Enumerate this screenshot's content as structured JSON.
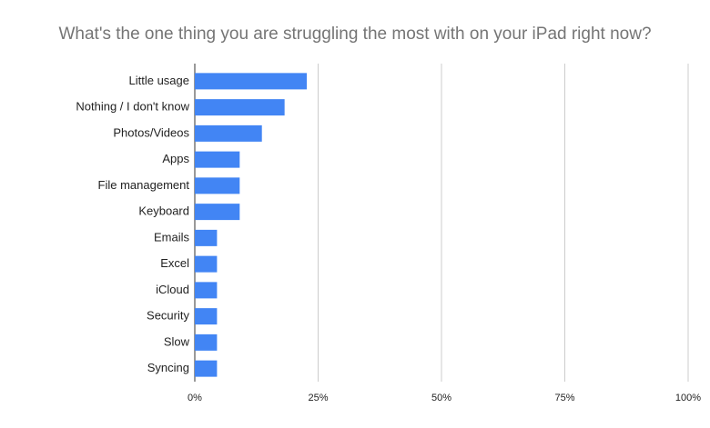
{
  "chart_data": {
    "type": "hbar",
    "title": "What's the one thing you are struggling the most with on your iPad right now?",
    "categories": [
      "Little usage",
      "Nothing / I don't know",
      "Photos/Videos",
      "Apps",
      "File management",
      "Keyboard",
      "Emails",
      "Excel",
      "iCloud",
      "Security",
      "Slow",
      "Syncing"
    ],
    "values": [
      22.7,
      18.2,
      13.6,
      9.1,
      9.1,
      9.1,
      4.5,
      4.5,
      4.5,
      4.5,
      4.5,
      4.5
    ],
    "color": "#4285f4",
    "xlim": [
      0,
      100
    ],
    "xticks": [
      {
        "value": 0,
        "label": "0%"
      },
      {
        "value": 25,
        "label": "25%"
      },
      {
        "value": 50,
        "label": "50%"
      },
      {
        "value": 75,
        "label": "75%"
      },
      {
        "value": 100,
        "label": "100%"
      }
    ],
    "grid": true
  }
}
